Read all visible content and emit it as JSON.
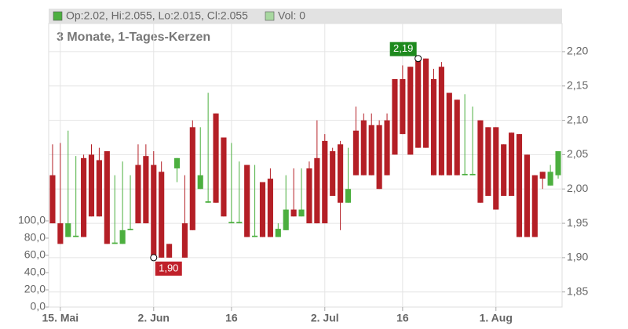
{
  "chart_data": {
    "type": "candlestick",
    "title": "3 Monate, 1-Tages-Kerzen",
    "legend_items": [
      {
        "text": "Op:2.02, Hi:2.055, Lo:2.015, Cl:2.055",
        "color": "#4caf3f"
      },
      {
        "text": "Vol: 0",
        "color": "#a8d8a0"
      }
    ],
    "categories": [
      null,
      "15. Mai",
      null,
      null,
      null,
      null,
      null,
      null,
      null,
      null,
      null,
      null,
      null,
      "2. Jun",
      null,
      null,
      null,
      null,
      null,
      null,
      null,
      null,
      null,
      "16",
      null,
      null,
      null,
      null,
      null,
      null,
      null,
      null,
      null,
      null,
      null,
      "2. Jul",
      null,
      null,
      null,
      null,
      null,
      null,
      null,
      null,
      null,
      "16",
      null,
      null,
      null,
      null,
      null,
      null,
      null,
      null,
      null,
      null,
      null,
      "1. Aug",
      null,
      null,
      null,
      null,
      null,
      null,
      null,
      null
    ],
    "open": [
      2.02,
      1.95,
      1.93,
      1.93,
      2.045,
      2.05,
      2.042,
      2.055,
      1.92,
      1.92,
      1.94,
      2.035,
      2.048,
      2.035,
      2.025,
      1.92,
      2.03,
      1.95,
      2.09,
      2.0,
      1.98,
      2.11,
      2.075,
      1.95,
      1.95,
      2.035,
      1.93,
      2.01,
      2.015,
      1.93,
      1.94,
      1.97,
      1.96,
      2.03,
      2.045,
      2.07,
      2.055,
      2.065,
      1.98,
      2.085,
      2.1,
      2.093,
      2.093,
      2.1,
      2.16,
      2.16,
      2.178,
      2.19,
      2.19,
      2.16,
      2.178,
      2.14,
      2.13,
      2.02,
      2.02,
      2.1,
      2.09,
      2.09,
      2.065,
      2.082,
      2.08,
      2.05,
      2.02,
      2.025,
      2.005,
      2.02
    ],
    "high": [
      2.065,
      2.067,
      2.085,
      2.048,
      2.05,
      2.065,
      2.06,
      2.055,
      2.02,
      2.04,
      2.02,
      2.065,
      2.065,
      2.055,
      2.04,
      1.92,
      2.045,
      2.02,
      2.1,
      2.09,
      2.14,
      2.11,
      2.075,
      2.067,
      2.04,
      2.035,
      2.035,
      2.01,
      2.03,
      1.95,
      2.02,
      2.03,
      2.03,
      2.04,
      2.1,
      2.08,
      2.06,
      2.07,
      2.06,
      2.12,
      2.11,
      2.11,
      2.1,
      2.11,
      2.16,
      2.18,
      2.178,
      2.19,
      2.19,
      2.175,
      2.185,
      2.14,
      2.13,
      2.138,
      2.12,
      2.1,
      2.09,
      2.09,
      2.065,
      2.082,
      2.08,
      2.05,
      2.02,
      2.025,
      2.035,
      2.055
    ],
    "low": [
      1.95,
      1.92,
      1.93,
      1.93,
      1.93,
      1.96,
      1.96,
      1.92,
      1.92,
      1.92,
      1.94,
      1.95,
      1.95,
      1.9,
      1.9,
      1.9,
      2.01,
      1.9,
      1.94,
      2.0,
      1.98,
      1.98,
      1.96,
      1.95,
      1.95,
      1.93,
      1.93,
      1.93,
      1.93,
      1.93,
      1.94,
      1.96,
      1.96,
      1.95,
      1.95,
      1.95,
      1.99,
      1.94,
      1.98,
      2.02,
      2.02,
      2.02,
      2.0,
      2.02,
      2.05,
      2.08,
      2.05,
      2.06,
      2.06,
      2.02,
      2.02,
      2.02,
      2.02,
      2.02,
      2.02,
      1.98,
      1.99,
      1.97,
      1.99,
      1.99,
      1.93,
      1.93,
      1.93,
      2.0,
      2.005,
      2.015
    ],
    "close": [
      1.95,
      1.92,
      1.95,
      1.932,
      1.93,
      1.96,
      1.96,
      1.92,
      1.922,
      1.94,
      1.942,
      1.95,
      1.95,
      1.9,
      1.9,
      1.9,
      2.045,
      1.9,
      1.94,
      2.02,
      1.982,
      1.98,
      1.96,
      1.952,
      1.952,
      1.93,
      1.932,
      1.93,
      1.93,
      1.942,
      1.97,
      1.96,
      1.97,
      1.95,
      1.95,
      1.95,
      1.99,
      1.98,
      2.0,
      2.02,
      2.02,
      2.02,
      2.0,
      2.02,
      2.05,
      2.08,
      2.05,
      2.06,
      2.06,
      2.02,
      2.02,
      2.02,
      2.02,
      2.022,
      2.022,
      1.98,
      1.99,
      1.97,
      1.99,
      1.99,
      1.93,
      1.93,
      1.93,
      2.015,
      2.025,
      2.055
    ],
    "up_color": "#4caf3f",
    "down_color": "#b41f26",
    "max_label": "2,19",
    "min_label": "1,90",
    "ylim": [
      1.828,
      2.241
    ],
    "yticks": [
      {
        "value": 1.85,
        "label": "1,85"
      },
      {
        "value": 1.9,
        "label": "1,90"
      },
      {
        "value": 1.95,
        "label": "1,95"
      },
      {
        "value": 2.0,
        "label": "2,00"
      },
      {
        "value": 2.05,
        "label": "2,05"
      },
      {
        "value": 2.1,
        "label": "2,10"
      },
      {
        "value": 2.15,
        "label": "2,15"
      },
      {
        "value": 2.2,
        "label": "2,20"
      }
    ],
    "y2lim": [
      0,
      329
    ],
    "y2ticks": [
      {
        "value": 0,
        "label": "0,0"
      },
      {
        "value": 20,
        "label": "20,0"
      },
      {
        "value": 40,
        "label": "40,0"
      },
      {
        "value": 60,
        "label": "60,0"
      },
      {
        "value": 80,
        "label": "80,0"
      },
      {
        "value": 100,
        "label": "100,0"
      }
    ],
    "grid": true
  }
}
